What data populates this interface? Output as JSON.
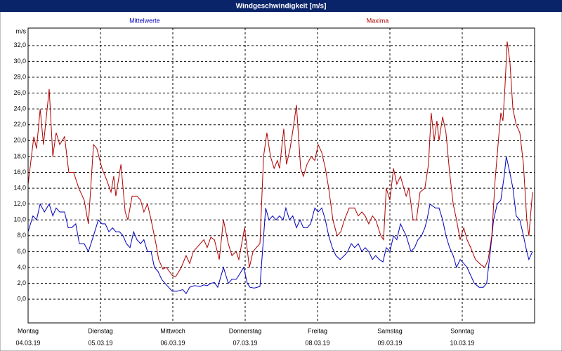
{
  "chart_data": {
    "type": "line",
    "title": "Windgeschwindigkeit [m/s]",
    "ylabel": "m/s",
    "xlim": [
      0,
      168
    ],
    "xticks": [
      {
        "value": 0,
        "label": "Montag"
      },
      {
        "value": 24,
        "label": "Dienstag"
      },
      {
        "value": 48,
        "label": "Mittwoch"
      },
      {
        "value": 72,
        "label": "Donnerstag"
      },
      {
        "value": 96,
        "label": "Freitag"
      },
      {
        "value": 120,
        "label": "Samstag"
      },
      {
        "value": 144,
        "label": "Sonntag"
      }
    ],
    "xtick_dates": [
      "04.03.19",
      "05.03.19",
      "06.03.19",
      "07.03.19",
      "08.03.19",
      "09.03.19",
      "10.03.19"
    ],
    "ylim": [
      -3,
      34.2
    ],
    "yticks": [
      {
        "value": 0,
        "label": "0,0"
      },
      {
        "value": 2,
        "label": "2,0"
      },
      {
        "value": 4,
        "label": "4,0"
      },
      {
        "value": 6,
        "label": "6,0"
      },
      {
        "value": 8,
        "label": "8,0"
      },
      {
        "value": 10,
        "label": "10,0"
      },
      {
        "value": 12,
        "label": "12,0"
      },
      {
        "value": 14,
        "label": "14,0"
      },
      {
        "value": 16,
        "label": "16,0"
      },
      {
        "value": 18,
        "label": "18,0"
      },
      {
        "value": 20,
        "label": "20,0"
      },
      {
        "value": 22,
        "label": "22,0"
      },
      {
        "value": 24,
        "label": "24,0"
      },
      {
        "value": 26,
        "label": "26,0"
      },
      {
        "value": 28,
        "label": "28,0"
      },
      {
        "value": 30,
        "label": "30,0"
      },
      {
        "value": 32,
        "label": "32,0"
      }
    ],
    "grid": true,
    "series": [
      {
        "name": "Mittelwerte",
        "color": "#0000c0",
        "x": [
          0,
          1.6,
          2.8,
          4,
          5.4,
          7,
          8.2,
          9.3,
          10.5,
          12.1,
          13.3,
          14.4,
          15.8,
          17,
          18.6,
          20,
          21.7,
          23.3,
          24.5,
          25.6,
          26.8,
          28,
          29.1,
          30.3,
          31.5,
          32.6,
          33.8,
          35,
          36.1,
          37.3,
          38.4,
          39.6,
          40.8,
          41.9,
          43.1,
          44.3,
          45.4,
          46.6,
          47.8,
          49.4,
          51.3,
          52.4,
          53.6,
          55.2,
          57.1,
          58.3,
          59.4,
          60.6,
          61.8,
          62.9,
          64.8,
          66.4,
          67.6,
          69,
          69.9,
          71.5,
          72.7,
          73.6,
          75,
          76.9,
          78.8,
          79.9,
          81.1,
          82.2,
          83.4,
          84.6,
          85.5,
          86.7,
          87.8,
          89,
          90.2,
          91.3,
          92.5,
          93.7,
          95.1,
          96.2,
          97.4,
          98.6,
          99.7,
          100.9,
          102.1,
          103.5,
          104.9,
          106,
          107.2,
          108.3,
          109.5,
          110.7,
          111.8,
          113,
          114.2,
          115.3,
          116.5,
          117.7,
          118.8,
          120,
          121.2,
          122.3,
          123.5,
          125.4,
          127,
          128.2,
          129.3,
          130.5,
          131.6,
          132.3,
          133.3,
          135.1,
          136.3,
          137.5,
          138.6,
          139.8,
          141,
          142.1,
          143.3,
          144.5,
          145.6,
          146.8,
          148,
          149.6,
          151,
          152.1,
          153.3,
          154.4,
          155.6,
          156.8,
          157.9,
          158.6,
          159.5,
          160.8,
          161.9,
          163.1,
          164.3,
          165.4,
          166.1,
          167.3
        ],
        "values": [
          8.5,
          10.5,
          10,
          12,
          11,
          12,
          10.5,
          11.5,
          11,
          11,
          9,
          9,
          9.5,
          7,
          7,
          6,
          8,
          10,
          9.5,
          9.5,
          8.5,
          9,
          8.5,
          8.5,
          8,
          7,
          6.5,
          8.5,
          7.5,
          7,
          7.5,
          6,
          6,
          4,
          3.5,
          2.5,
          2,
          1.5,
          1,
          1,
          1.2,
          0.7,
          1.5,
          1.7,
          1.6,
          1.8,
          1.7,
          2,
          2.1,
          1.5,
          4,
          2,
          2.5,
          2.5,
          3,
          4,
          2,
          1.5,
          1.4,
          1.6,
          11.5,
          10,
          10.5,
          10,
          10.5,
          10,
          11.5,
          10,
          10.5,
          9,
          10,
          9,
          9,
          9.5,
          11.5,
          11,
          11.5,
          10,
          8,
          6.5,
          5.5,
          5,
          5.5,
          6,
          7,
          6.5,
          7,
          6,
          6.5,
          6,
          5,
          5.5,
          5,
          4.7,
          6.5,
          6,
          8,
          7.5,
          9.5,
          8,
          6,
          6.5,
          7.5,
          8,
          9,
          10,
          12,
          11.5,
          11.5,
          10,
          8,
          6.5,
          5.5,
          4,
          5,
          4.5,
          4,
          3,
          2,
          1.5,
          1.5,
          2,
          6,
          10,
          12,
          12.5,
          15.5,
          18,
          16.5,
          14,
          10.5,
          10,
          8,
          6,
          5,
          6
        ]
      },
      {
        "name": "Maxima",
        "color": "#b00000",
        "x": [
          0,
          1.9,
          2.8,
          4,
          5.1,
          7,
          8.2,
          9.3,
          10.5,
          12.1,
          13.5,
          15.1,
          16.8,
          18.6,
          20,
          21.7,
          22.8,
          24.5,
          26.1,
          27.5,
          28.4,
          29.1,
          30.8,
          32.2,
          33.1,
          34.5,
          36.1,
          37.3,
          38.4,
          39.6,
          40.8,
          42.4,
          43.3,
          44.7,
          45.9,
          47.8,
          48.9,
          50.8,
          52.4,
          53.6,
          54.8,
          57.1,
          58.3,
          59.4,
          60.6,
          61.8,
          63.4,
          64.8,
          66.4,
          67.6,
          69,
          69.9,
          71.8,
          73.4,
          74.6,
          75.7,
          76.9,
          78.1,
          79.2,
          80.4,
          81.6,
          82.7,
          83.4,
          84.8,
          85.7,
          86.9,
          88.1,
          89,
          90.4,
          91.3,
          92.5,
          93.9,
          95.1,
          96.2,
          97.4,
          98.6,
          99.7,
          101.1,
          102.5,
          103.7,
          104.9,
          106.5,
          108.3,
          109.5,
          110.7,
          111.8,
          113,
          114.2,
          115.3,
          117,
          117.9,
          118.8,
          120,
          121.2,
          122.3,
          123.5,
          125.4,
          126.3,
          127.7,
          128.8,
          130,
          131.6,
          132.8,
          133.7,
          134.7,
          135.6,
          136.3,
          137.5,
          138.6,
          139.8,
          141,
          142.1,
          143.3,
          144.5,
          145.6,
          146.8,
          148.4,
          150.3,
          151.5,
          152.6,
          153.8,
          154.9,
          156.1,
          156.8,
          157.5,
          158.2,
          158.9,
          159.8,
          160.8,
          161.9,
          163.1,
          164.3,
          165.4,
          166.1,
          167.3
        ],
        "values": [
          14.5,
          20.5,
          19,
          24,
          19.5,
          26.5,
          18,
          21,
          19.5,
          20.5,
          16,
          16,
          14,
          12.5,
          9.5,
          19.5,
          19,
          16.5,
          15,
          13.5,
          15.5,
          13,
          17,
          11,
          10,
          13,
          13,
          12.5,
          11,
          12,
          10,
          7,
          5,
          3.8,
          4,
          3,
          2.8,
          4,
          5.5,
          4.5,
          6,
          7,
          7.5,
          6.5,
          7.8,
          7.5,
          5,
          10,
          7,
          5.5,
          6,
          5,
          9,
          4,
          6,
          6.5,
          7,
          18,
          21,
          18,
          16.5,
          17.5,
          16.5,
          21.5,
          17,
          19,
          22,
          24.5,
          16.5,
          15.5,
          17,
          18,
          17.5,
          19.5,
          18.5,
          16.5,
          14,
          10,
          8,
          8.5,
          10,
          11.5,
          11.5,
          10.5,
          11,
          10.5,
          9.5,
          10.5,
          10,
          8,
          7.5,
          14,
          12.5,
          16.5,
          14.5,
          15.5,
          13,
          14,
          10,
          10,
          13.5,
          14,
          17,
          23.5,
          20,
          22.5,
          20,
          23,
          21,
          16,
          12,
          10,
          7.5,
          9,
          7.5,
          6.5,
          5,
          4.3,
          4,
          5,
          8,
          15,
          20.5,
          23.5,
          22.5,
          27,
          32.5,
          30,
          24,
          22,
          21,
          17,
          10,
          8,
          13.5
        ]
      }
    ]
  }
}
